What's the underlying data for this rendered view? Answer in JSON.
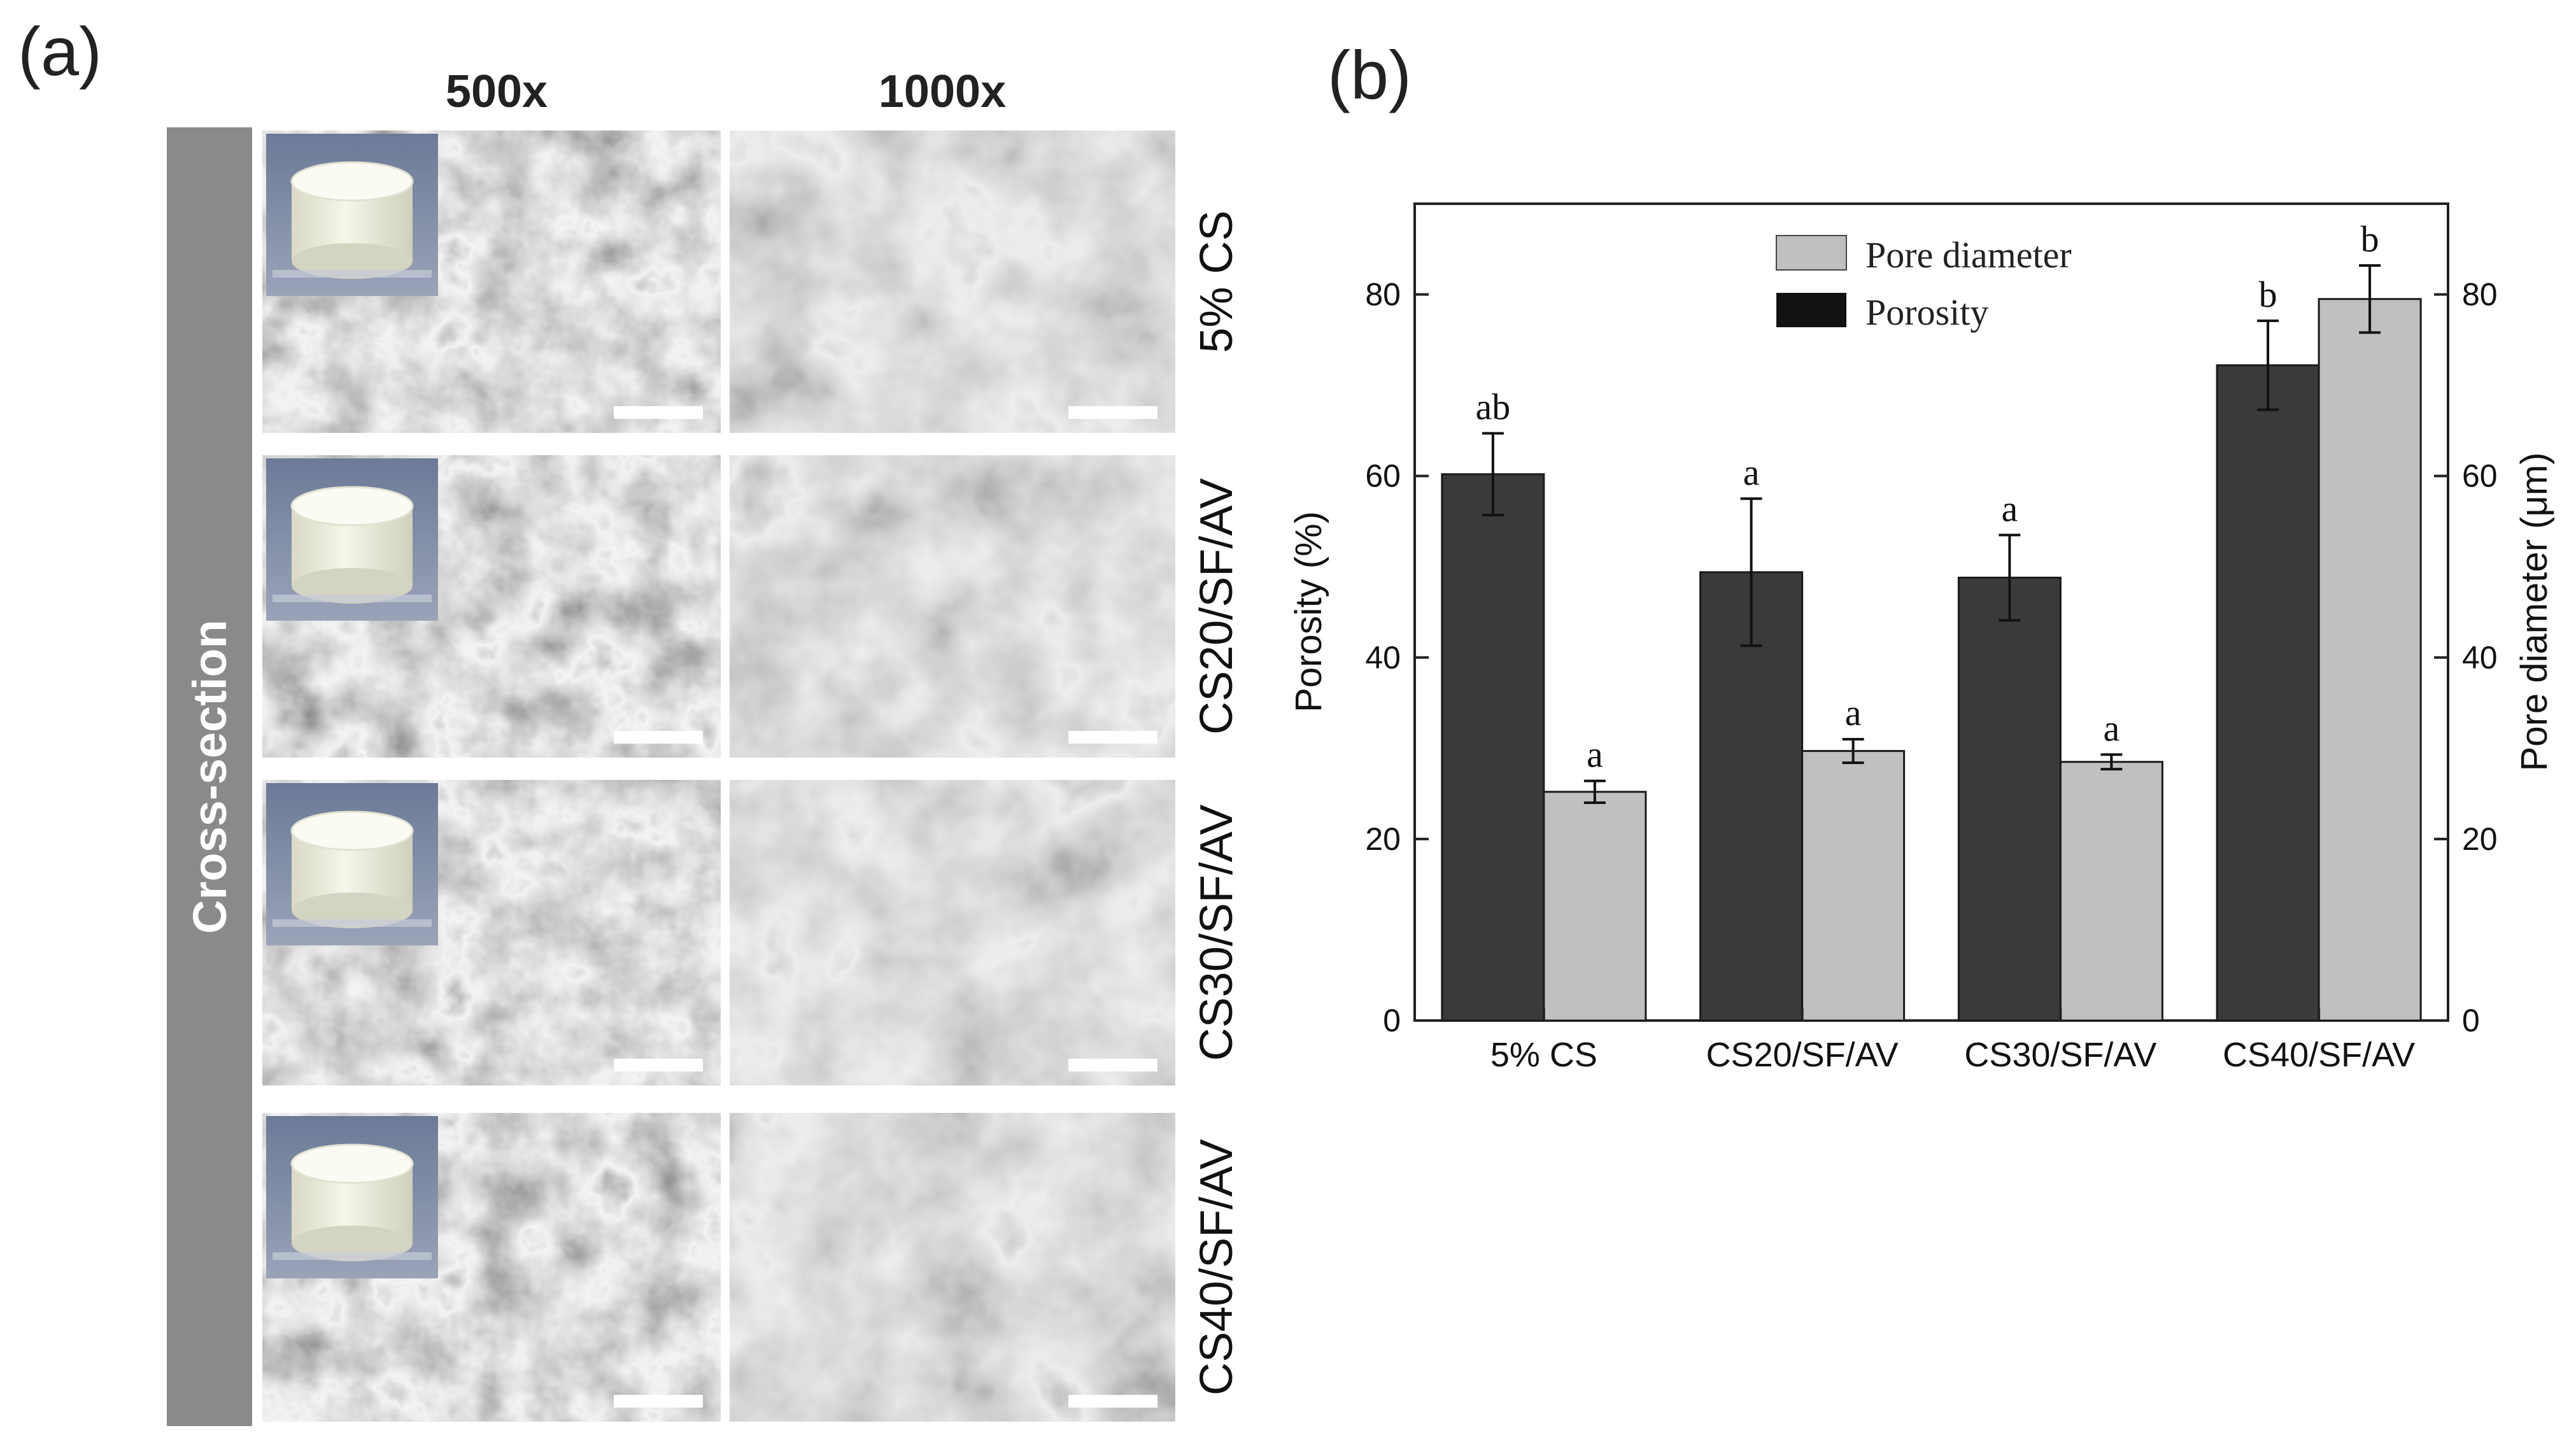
{
  "panel_a": {
    "label": "(a)",
    "side_label": "Cross-section",
    "columns": [
      "500x",
      "1000x"
    ],
    "rows": [
      "5% CS",
      "CS20/SF/AV",
      "CS30/SF/AV",
      "CS40/SF/AV"
    ]
  },
  "panel_b": {
    "label": "(b)"
  },
  "chart_data": {
    "type": "bar",
    "categories": [
      "5% CS",
      "CS20/SF/AV",
      "CS30/SF/AV",
      "CS40/SF/AV"
    ],
    "series": [
      {
        "name": "Porosity",
        "axis": "left",
        "color": "#3a3a3a",
        "values": [
          60.2,
          49.4,
          48.8,
          72.2
        ],
        "errors": [
          4.5,
          8.1,
          4.7,
          4.9
        ],
        "significance": [
          "ab",
          "a",
          "a",
          "b"
        ]
      },
      {
        "name": "Pore diameter",
        "axis": "right",
        "color": "#c0c0c0",
        "values": [
          25.2,
          29.7,
          28.5,
          79.5
        ],
        "errors": [
          1.2,
          1.3,
          0.8,
          3.7
        ],
        "significance": [
          "a",
          "a",
          "a",
          "b"
        ]
      }
    ],
    "ylabel": "Porosity (%)",
    "ylabel_right": "Pore diameter (μm)",
    "ylim": [
      0,
      90
    ],
    "ylim_right": [
      0,
      90
    ],
    "yticks": [
      0,
      20,
      40,
      60,
      80
    ],
    "yticks_right": [
      0,
      20,
      40,
      60,
      80
    ],
    "legend": {
      "placement": "top-center",
      "entries": [
        "Pore diameter",
        "Porosity"
      ]
    },
    "grid": false
  }
}
